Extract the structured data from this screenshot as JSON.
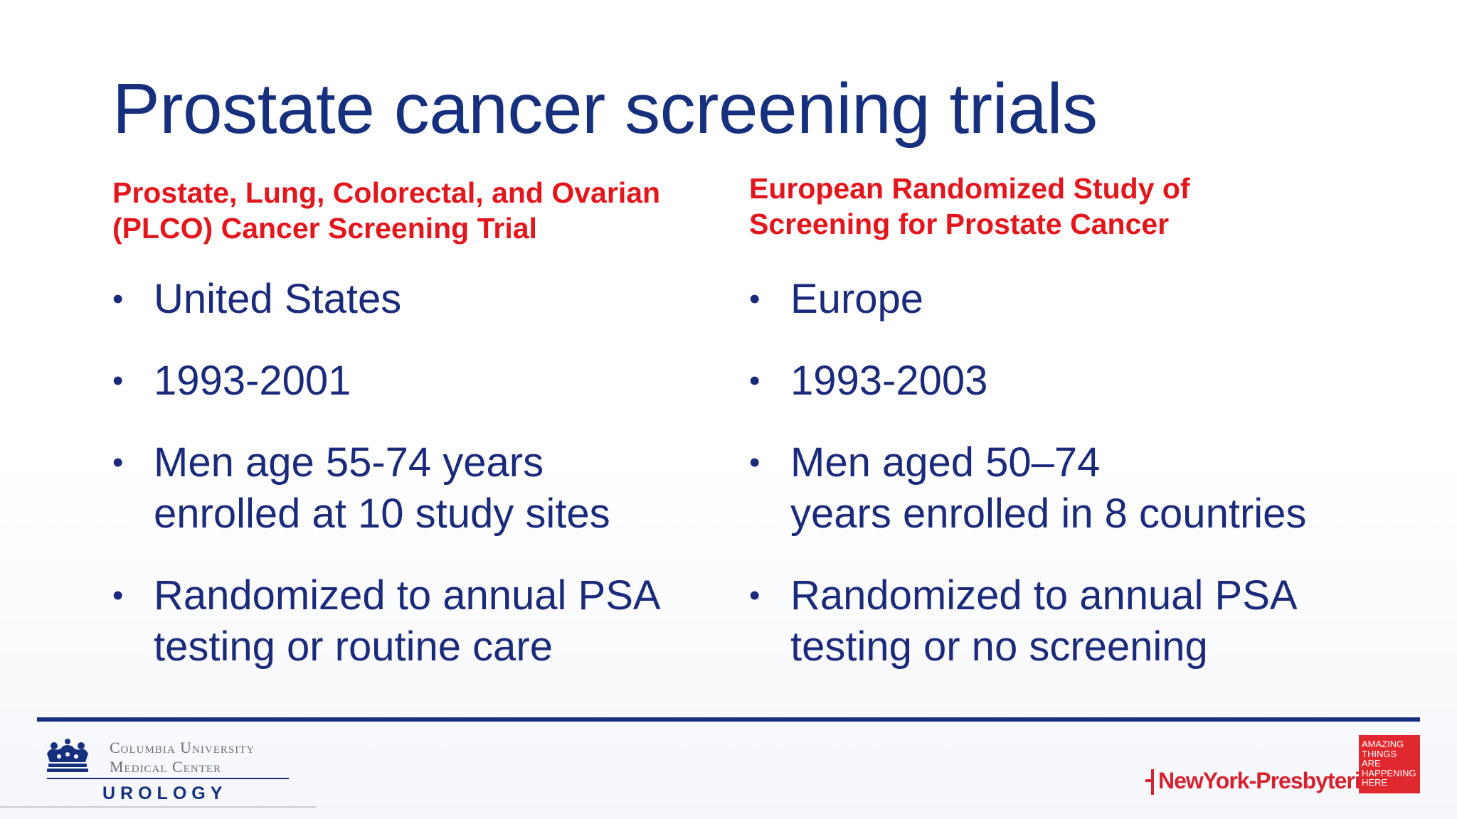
{
  "slide": {
    "title": "Prostate cancer screening trials"
  },
  "left": {
    "heading_line1": "Prostate, Lung, Colorectal, and Ovarian",
    "heading_line2": "(PLCO) Cancer Screening Trial",
    "bullets": [
      {
        "lines": [
          "United States"
        ]
      },
      {
        "lines": [
          "1993-2001"
        ]
      },
      {
        "lines": [
          "Men age 55-74 years",
          "enrolled at 10 study sites"
        ]
      },
      {
        "lines": [
          "Randomized to annual PSA",
          "testing or routine care"
        ]
      }
    ]
  },
  "right": {
    "heading_line1": "European Randomized Study of",
    "heading_line2": "Screening for Prostate Cancer",
    "bullets": [
      {
        "lines": [
          "Europe"
        ]
      },
      {
        "lines": [
          "1993-2003"
        ]
      },
      {
        "lines": [
          "Men aged 50–74",
          "years enrolled in 8 countries"
        ]
      },
      {
        "lines": [
          "Randomized to annual PSA",
          "testing or no screening"
        ]
      }
    ]
  },
  "footer": {
    "columbia_line1": "Columbia University",
    "columbia_line2": "Medical Center",
    "department": "UROLOGY",
    "nyp_name": "NewYork-Presbyterian",
    "tagline": [
      "AMAZING",
      "THINGS",
      "ARE",
      "HAPPENING",
      "HERE"
    ],
    "icons": [
      "crown-icon",
      "nyp-cross-icon"
    ]
  },
  "colors": {
    "title": "#16307e",
    "heading_red": "#e2161d",
    "body_navy": "#1b2a7a",
    "nyp_red": "#d42330"
  }
}
